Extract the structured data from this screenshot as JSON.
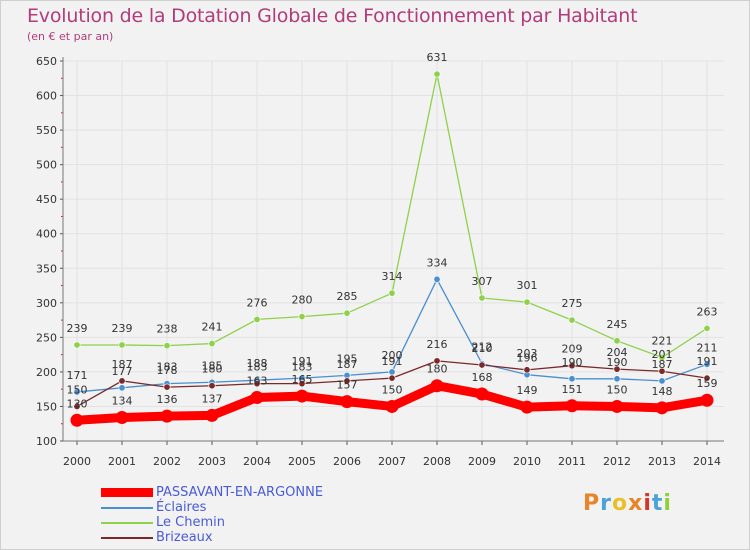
{
  "title": "Evolution de la Dotation Globale de Fonctionnement par Habitant",
  "subtitle": "(en € et par an)",
  "logo": {
    "text": "Proxiti",
    "colors": [
      "#e8842a",
      "#4aa3d6",
      "#e8c12a",
      "#e8842a",
      "#d6342a",
      "#4aa3d6",
      "#8fcf3a"
    ]
  },
  "chart_data": {
    "type": "line",
    "title": "Evolution de la Dotation Globale de Fonctionnement par Habitant",
    "subtitle": "(en € et par an)",
    "x": [
      "2000",
      "2001",
      "2002",
      "2003",
      "2004",
      "2005",
      "2006",
      "2007",
      "2008",
      "2009",
      "2010",
      "2011",
      "2012",
      "2013",
      "2014"
    ],
    "ylim": [
      100,
      650
    ],
    "yticks": [
      100,
      150,
      200,
      250,
      300,
      350,
      400,
      450,
      500,
      550,
      600,
      650
    ],
    "grid": true,
    "legend": "bottom-left",
    "series": [
      {
        "name": "PASSAVANT-EN-ARGONNE",
        "color": "#ff0000",
        "values": [
          130,
          134,
          136,
          137,
          163,
          165,
          157,
          150,
          180,
          168,
          149,
          151,
          150,
          148,
          159
        ],
        "labels": [
          "130",
          "134",
          "136",
          "137",
          "163",
          "165",
          "157",
          "150",
          "180",
          "168",
          "149",
          "151",
          "150",
          "148",
          "159"
        ]
      },
      {
        "name": "Éclaires",
        "color": "#4a8fd0",
        "values": [
          171,
          177,
          183,
          185,
          188,
          191,
          195,
          200,
          334,
          212,
          196,
          190,
          190,
          187,
          211
        ],
        "labels": [
          "171",
          "177",
          "183",
          "185",
          "188",
          "191",
          "195",
          "200",
          "334",
          "212",
          "196",
          "190",
          "190",
          "187",
          "211"
        ]
      },
      {
        "name": "Le Chemin",
        "color": "#8ed14a",
        "values": [
          239,
          239,
          238,
          241,
          276,
          280,
          285,
          314,
          631,
          307,
          301,
          275,
          245,
          221,
          263
        ],
        "labels": [
          "239",
          "239",
          "238",
          "241",
          "276",
          "280",
          "285",
          "314",
          "631",
          "307",
          "301",
          "275",
          "245",
          "221",
          "263"
        ]
      },
      {
        "name": "Brizeaux",
        "color": "#7a2a2a",
        "values": [
          150,
          187,
          178,
          180,
          183,
          183,
          187,
          191,
          216,
          210,
          203,
          209,
          204,
          201,
          191
        ],
        "labels": [
          "150",
          "187",
          "178",
          "180",
          "183",
          "183",
          "187",
          "191",
          "216",
          "210",
          "203",
          "209",
          "204",
          "201",
          "191"
        ]
      }
    ]
  }
}
